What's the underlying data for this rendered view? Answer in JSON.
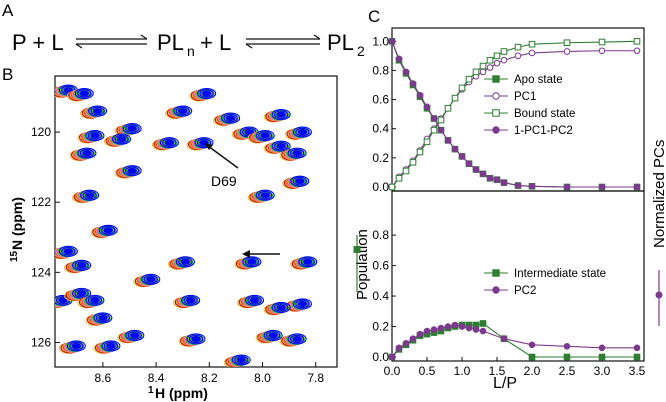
{
  "panels": {
    "a": {
      "letter": "A"
    },
    "b": {
      "letter": "B"
    },
    "c": {
      "letter": "C"
    }
  },
  "equation": {
    "p_plus_l": "P + L",
    "pln": "PL",
    "pln_sub": "n",
    "plus_l": "+ L",
    "pl2": "PL",
    "pl2_sub": "2"
  },
  "colors": {
    "green": "#2e7d32",
    "purple": "#7b3a8c",
    "axis": "#111111",
    "nmr_blue": "#0000ff",
    "nmr_green": "#33cc33",
    "nmr_orange": "#f0a030",
    "nmr_red": "#cc0000",
    "nmr_pink": "#ff66cc",
    "nmr_yellow": "#e8c040"
  },
  "chart_data": [
    {
      "id": "nmr-spectrum",
      "type": "scatter",
      "title": "",
      "xlabel_sup": "1",
      "xlabel": "H (ppm)",
      "ylabel_sup": "15",
      "ylabel": "N (ppm)",
      "xlim": [
        8.78,
        7.72
      ],
      "ylim": [
        126.7,
        118.4
      ],
      "x_ticks": [
        "8.6",
        "8.4",
        "8.2",
        "8.0",
        "7.8"
      ],
      "y_ticks": [
        "120",
        "122",
        "124",
        "126"
      ],
      "annotations": [
        {
          "label": "D69",
          "x": 8.23,
          "y": 120.95
        }
      ],
      "peaks": [
        {
          "x": 8.73,
          "y": 118.8
        },
        {
          "x": 8.67,
          "y": 118.9
        },
        {
          "x": 8.62,
          "y": 119.4
        },
        {
          "x": 8.49,
          "y": 119.9
        },
        {
          "x": 8.3,
          "y": 119.4
        },
        {
          "x": 8.21,
          "y": 118.9
        },
        {
          "x": 8.12,
          "y": 119.6
        },
        {
          "x": 7.93,
          "y": 119.5
        },
        {
          "x": 7.85,
          "y": 120.0
        },
        {
          "x": 8.63,
          "y": 120.1
        },
        {
          "x": 8.53,
          "y": 120.2
        },
        {
          "x": 8.35,
          "y": 120.3
        },
        {
          "x": 8.22,
          "y": 120.3
        },
        {
          "x": 8.05,
          "y": 120.0
        },
        {
          "x": 7.99,
          "y": 120.1
        },
        {
          "x": 7.93,
          "y": 120.4
        },
        {
          "x": 7.87,
          "y": 120.6
        },
        {
          "x": 8.66,
          "y": 120.6
        },
        {
          "x": 8.49,
          "y": 121.1
        },
        {
          "x": 7.86,
          "y": 121.4
        },
        {
          "x": 7.99,
          "y": 121.8
        },
        {
          "x": 8.65,
          "y": 121.8
        },
        {
          "x": 8.58,
          "y": 122.8
        },
        {
          "x": 8.29,
          "y": 123.7
        },
        {
          "x": 8.04,
          "y": 123.7
        },
        {
          "x": 7.83,
          "y": 123.7
        },
        {
          "x": 8.73,
          "y": 123.4
        },
        {
          "x": 8.68,
          "y": 123.8
        },
        {
          "x": 8.42,
          "y": 124.2
        },
        {
          "x": 8.75,
          "y": 124.8
        },
        {
          "x": 8.68,
          "y": 124.6
        },
        {
          "x": 8.63,
          "y": 124.8
        },
        {
          "x": 8.27,
          "y": 124.8
        },
        {
          "x": 8.03,
          "y": 124.8
        },
        {
          "x": 7.85,
          "y": 124.9
        },
        {
          "x": 7.93,
          "y": 125.0
        },
        {
          "x": 8.6,
          "y": 125.3
        },
        {
          "x": 7.96,
          "y": 125.8
        },
        {
          "x": 8.48,
          "y": 125.8
        },
        {
          "x": 8.25,
          "y": 125.9
        },
        {
          "x": 7.87,
          "y": 125.9
        },
        {
          "x": 8.7,
          "y": 126.1
        },
        {
          "x": 8.57,
          "y": 126.1
        },
        {
          "x": 8.08,
          "y": 126.5
        }
      ]
    },
    {
      "id": "population-top",
      "type": "line",
      "xlim": [
        0,
        3.6
      ],
      "ylim": [
        0,
        1.05
      ],
      "y_ticks": [
        "0.0",
        "0.2",
        "0.4",
        "0.6",
        "0.8",
        "1.0"
      ],
      "x": [
        0,
        0.1,
        0.2,
        0.3,
        0.4,
        0.5,
        0.6,
        0.7,
        0.8,
        0.9,
        1.0,
        1.1,
        1.2,
        1.3,
        1.4,
        1.5,
        1.6,
        1.8,
        2.0,
        2.5,
        3.0,
        3.5
      ],
      "series": [
        {
          "name": "Apo state",
          "marker": "square-filled",
          "color": "green",
          "values": [
            1.0,
            0.87,
            0.78,
            0.7,
            0.62,
            0.54,
            0.47,
            0.39,
            0.32,
            0.26,
            0.21,
            0.16,
            0.12,
            0.09,
            0.06,
            0.05,
            0.03,
            0.01,
            0.005,
            0.0,
            0.0,
            0.0
          ]
        },
        {
          "name": "PC1",
          "marker": "circle-open",
          "color": "purple",
          "values": [
            0.0,
            0.07,
            0.12,
            0.18,
            0.25,
            0.33,
            0.4,
            0.47,
            0.54,
            0.61,
            0.67,
            0.72,
            0.76,
            0.79,
            0.82,
            0.85,
            0.87,
            0.9,
            0.92,
            0.93,
            0.935,
            0.935
          ]
        },
        {
          "name": "Bound state",
          "marker": "square-open",
          "color": "green",
          "values": [
            0.0,
            0.06,
            0.11,
            0.17,
            0.24,
            0.31,
            0.39,
            0.46,
            0.54,
            0.61,
            0.68,
            0.74,
            0.79,
            0.83,
            0.87,
            0.9,
            0.93,
            0.96,
            0.98,
            0.99,
            0.995,
            1.0
          ]
        },
        {
          "name": "1-PC1-PC2",
          "marker": "circle-filled",
          "color": "purple",
          "values": [
            1.0,
            0.88,
            0.79,
            0.71,
            0.63,
            0.55,
            0.47,
            0.39,
            0.32,
            0.26,
            0.21,
            0.16,
            0.12,
            0.09,
            0.06,
            0.05,
            0.03,
            0.01,
            0.005,
            0.0,
            0.0,
            0.0
          ]
        }
      ]
    },
    {
      "id": "population-bottom",
      "type": "line",
      "xlim": [
        0,
        3.6
      ],
      "ylim": [
        0,
        1.05
      ],
      "x_ticks": [
        "0.0",
        "0.5",
        "1.0",
        "1.5",
        "2.0",
        "2.5",
        "3.0",
        "3.5"
      ],
      "y_ticks": [
        "0.0",
        "0.2",
        "0.4",
        "0.6",
        "0.8"
      ],
      "xlabel": "L/P",
      "ylabel": "Population",
      "ylabel_right": "Normalized PCs",
      "x": [
        0,
        0.1,
        0.2,
        0.3,
        0.4,
        0.5,
        0.6,
        0.7,
        0.8,
        0.9,
        1.0,
        1.1,
        1.2,
        1.3,
        1.6,
        2.0,
        2.5,
        3.0,
        3.5
      ],
      "series": [
        {
          "name": "Intermediate state",
          "marker": "square-filled",
          "color": "green",
          "values": [
            0.0,
            0.05,
            0.08,
            0.11,
            0.14,
            0.15,
            0.16,
            0.17,
            0.19,
            0.2,
            0.21,
            0.21,
            0.21,
            0.22,
            0.12,
            0.0,
            0.0,
            0.0,
            0.0
          ]
        },
        {
          "name": "PC2",
          "marker": "circle-filled",
          "color": "purple",
          "values": [
            0.0,
            0.06,
            0.09,
            0.12,
            0.15,
            0.17,
            0.18,
            0.19,
            0.2,
            0.21,
            0.2,
            0.19,
            0.18,
            0.17,
            0.12,
            0.08,
            0.07,
            0.06,
            0.06
          ]
        }
      ]
    }
  ]
}
